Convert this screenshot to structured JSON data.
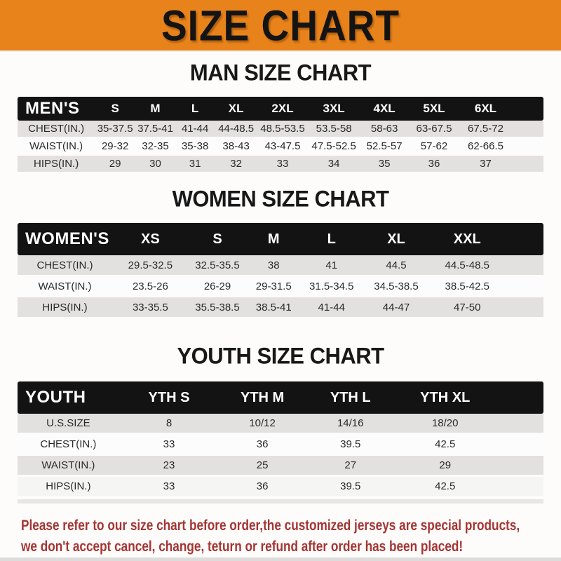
{
  "banner": {
    "title": "SIZE CHART"
  },
  "colors": {
    "banner_orange": "#E8831C",
    "header_bar_black": "#131313",
    "row_gray": "#E2E1DF",
    "footer_red": "#A43533"
  },
  "men": {
    "heading": "MAN SIZE CHART",
    "label": "MEN'S",
    "sizes": [
      "S",
      "M",
      "L",
      "XL",
      "2XL",
      "3XL",
      "4XL",
      "5XL",
      "6XL"
    ],
    "rows": [
      {
        "label": "CHEST(IN.)",
        "values": [
          "35-37.5",
          "37.5-41",
          "41-44",
          "44-48.5",
          "48.5-53.5",
          "53.5-58",
          "58-63",
          "63-67.5",
          "67.5-72"
        ]
      },
      {
        "label": "WAIST(IN.)",
        "values": [
          "29-32",
          "32-35",
          "35-38",
          "38-43",
          "43-47.5",
          "47.5-52.5",
          "52.5-57",
          "57-62",
          "62-66.5"
        ]
      },
      {
        "label": "HIPS(IN.)",
        "values": [
          "29",
          "30",
          "31",
          "32",
          "33",
          "34",
          "35",
          "36",
          "37"
        ]
      }
    ]
  },
  "women": {
    "heading": "WOMEN SIZE CHART",
    "label": "WOMEN'S",
    "sizes": [
      "XS",
      "S",
      "M",
      "L",
      "XL",
      "XXL"
    ],
    "rows": [
      {
        "label": "CHEST(IN.)",
        "values": [
          "29.5-32.5",
          "32.5-35.5",
          "38",
          "41",
          "44.5",
          "44.5-48.5"
        ]
      },
      {
        "label": "WAIST(IN.)",
        "values": [
          "23.5-26",
          "26-29",
          "29-31.5",
          "31.5-34.5",
          "34.5-38.5",
          "38.5-42.5"
        ]
      },
      {
        "label": "HIPS(IN.)",
        "values": [
          "33-35.5",
          "35.5-38.5",
          "38.5-41",
          "41-44",
          "44-47",
          "47-50"
        ]
      }
    ]
  },
  "youth": {
    "heading": "YOUTH SIZE CHART",
    "label": "YOUTH",
    "sizes": [
      "YTH S",
      "YTH M",
      "YTH L",
      "YTH XL"
    ],
    "rows": [
      {
        "label": "U.S.SIZE",
        "values": [
          "8",
          "10/12",
          "14/16",
          "18/20"
        ]
      },
      {
        "label": "CHEST(IN.)",
        "values": [
          "33",
          "36",
          "39.5",
          "42.5"
        ]
      },
      {
        "label": "WAIST(IN.)",
        "values": [
          "23",
          "25",
          "27",
          "29"
        ]
      },
      {
        "label": "HIPS(IN.)",
        "values": [
          "33",
          "36",
          "39.5",
          "42.5"
        ]
      }
    ]
  },
  "footer": {
    "line1": "Please refer to our size chart before order,the customized jerseys are special products,",
    "line2": "we don't accept cancel, change, teturn or refund after order has been placed!"
  }
}
